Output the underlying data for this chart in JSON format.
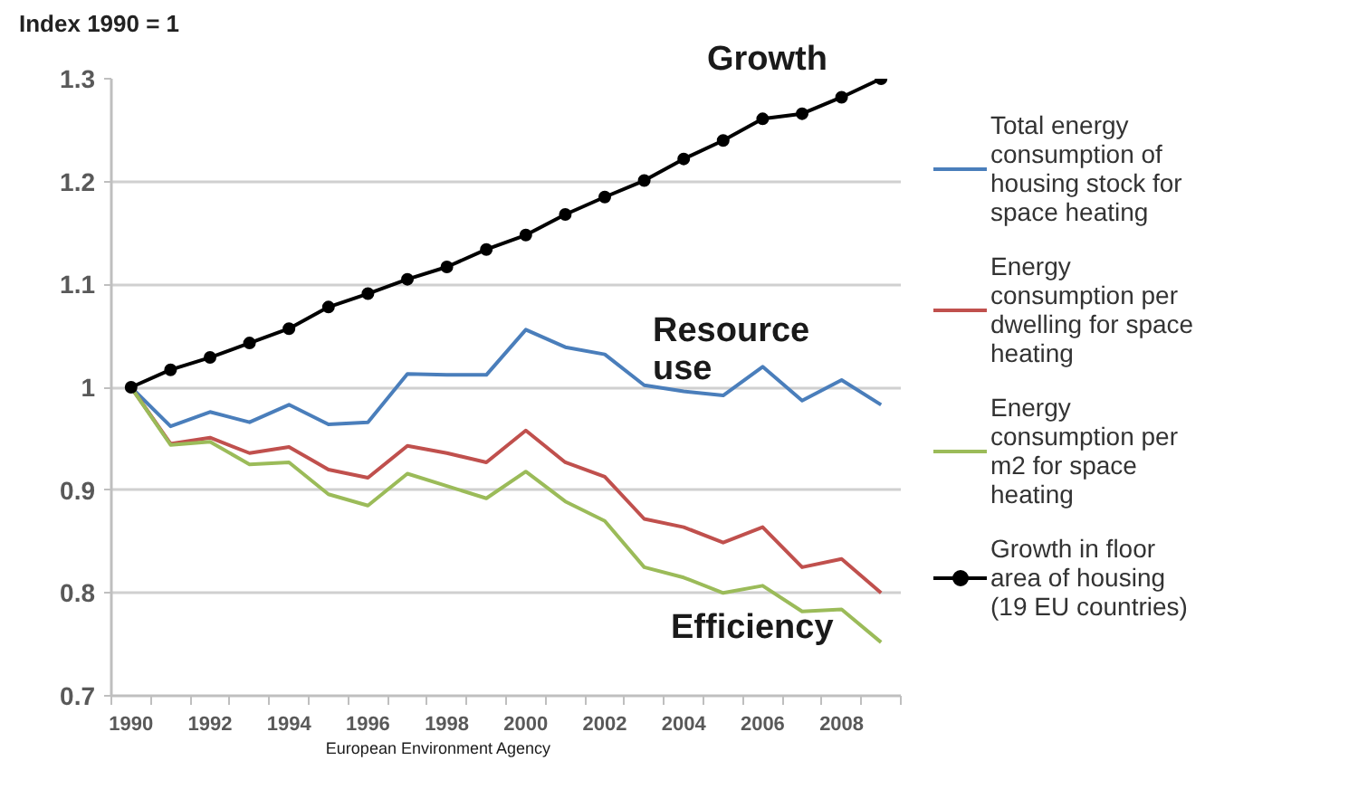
{
  "chart_data": {
    "type": "line",
    "ylabel": "Index 1990 = 1",
    "x": [
      1990,
      1991,
      1992,
      1993,
      1994,
      1995,
      1996,
      1997,
      1998,
      1999,
      2000,
      2001,
      2002,
      2003,
      2004,
      2005,
      2006,
      2007,
      2008,
      2009
    ],
    "xlim": [
      1989.5,
      2009.5
    ],
    "xticks": [
      1990,
      1992,
      1994,
      1996,
      1998,
      2000,
      2002,
      2004,
      2006,
      2008
    ],
    "ylim": [
      0.7,
      1.3
    ],
    "yticks": [
      0.7,
      0.8,
      0.9,
      1,
      1.1,
      1.2,
      1.3
    ],
    "grid": "y",
    "legend": "right",
    "line_style": "solid",
    "series": [
      {
        "name": "Total energy consumption of housing stock for space heating",
        "color": "#4a7ebb",
        "values": [
          1.0,
          0.962,
          0.976,
          0.966,
          0.983,
          0.964,
          0.966,
          1.013,
          1.012,
          1.012,
          1.056,
          1.039,
          1.032,
          1.002,
          0.996,
          0.992,
          1.02,
          0.987,
          1.007,
          0.983
        ]
      },
      {
        "name": "Energy consumption per dwelling for space heating",
        "color": "#c0504d",
        "values": [
          1.0,
          0.945,
          0.951,
          0.936,
          0.942,
          0.92,
          0.912,
          0.943,
          0.936,
          0.927,
          0.958,
          0.927,
          0.913,
          0.872,
          0.864,
          0.849,
          0.864,
          0.825,
          0.833,
          0.8
        ]
      },
      {
        "name": "Energy consumption per m2 for space heating",
        "color": "#9bbb59",
        "values": [
          1.0,
          0.944,
          0.947,
          0.925,
          0.927,
          0.896,
          0.885,
          0.916,
          0.904,
          0.892,
          0.918,
          0.889,
          0.87,
          0.825,
          0.815,
          0.8,
          0.807,
          0.782,
          0.784,
          0.752
        ]
      },
      {
        "name": "Growth in floor area of housing (19 EU countries)",
        "color": "#000000",
        "marker": "circle",
        "values": [
          1.0,
          1.017,
          1.029,
          1.043,
          1.057,
          1.078,
          1.091,
          1.105,
          1.117,
          1.134,
          1.148,
          1.168,
          1.185,
          1.201,
          1.222,
          1.24,
          1.261,
          1.266,
          1.282,
          1.3
        ]
      }
    ],
    "annotations": [
      "Growth",
      "Resource use",
      "Efficiency",
      "European Environment Agency"
    ]
  }
}
